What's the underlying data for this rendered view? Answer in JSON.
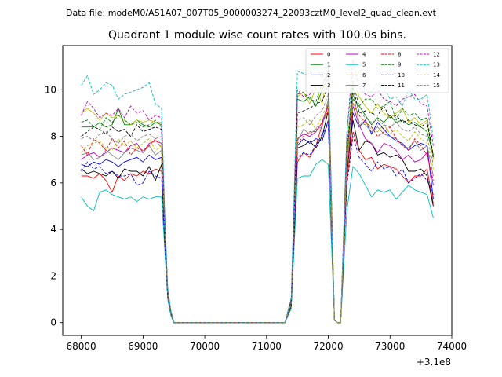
{
  "figure": {
    "suptitle": "Data file: modeM0/AS1A07_007T05_9000003274_22093cztM0_level2_quad_clean.evt"
  },
  "chart_data": {
    "type": "line",
    "title": "Quadrant 1 module wise count rates with 100.0s bins.",
    "xlabel": "",
    "ylabel": "",
    "x_offset_label": "+3.1e8",
    "xlim": [
      67700,
      74000
    ],
    "ylim": [
      -0.55,
      11.9
    ],
    "xticks": [
      68000,
      69000,
      70000,
      71000,
      72000,
      73000,
      74000
    ],
    "yticks": [
      0,
      2,
      4,
      6,
      8,
      10
    ],
    "grid": false,
    "legend": {
      "placement": "top-right",
      "columns": 4
    },
    "x": [
      68000,
      68100,
      68200,
      68300,
      68400,
      68500,
      68600,
      68700,
      68800,
      68900,
      69000,
      69100,
      69200,
      69300,
      69350,
      69400,
      69450,
      69500,
      69600,
      70000,
      70500,
      71000,
      71300,
      71400,
      71500,
      71600,
      71700,
      71800,
      71900,
      72000,
      72100,
      72150,
      72200,
      72300,
      72400,
      72500,
      72600,
      72700,
      72800,
      72900,
      73000,
      73100,
      73200,
      73300,
      73400,
      73500,
      73600,
      73700
    ],
    "series": [
      {
        "name": "0",
        "color": "#ff0000",
        "dash": "solid",
        "values": [
          6.3,
          6.3,
          6.2,
          6.4,
          6.1,
          5.6,
          6.3,
          6.1,
          6.4,
          6.3,
          6.5,
          6.4,
          6.6,
          6.5,
          3.8,
          1.2,
          0.4,
          0,
          0,
          0,
          0,
          0,
          0,
          0.7,
          6.9,
          7.3,
          7.1,
          7.6,
          8.5,
          9.3,
          0.1,
          0,
          0,
          6.1,
          8.2,
          7.4,
          7.0,
          7.1,
          6.6,
          6.8,
          6.7,
          6.6,
          6.3,
          6.0,
          6.3,
          6.3,
          6.6,
          5.1
        ]
      },
      {
        "name": "1",
        "color": "#008000",
        "dash": "solid",
        "values": [
          8.4,
          8.4,
          8.4,
          8.6,
          8.4,
          8.5,
          9.2,
          8.5,
          8.5,
          8.7,
          8.5,
          8.4,
          8.6,
          8.5,
          4.5,
          1.4,
          0.5,
          0,
          0,
          0,
          0,
          0,
          0,
          1.0,
          9.6,
          9.5,
          9.7,
          9.3,
          10.0,
          10.5,
          0.1,
          0,
          0,
          7.0,
          9.6,
          9.3,
          8.9,
          8.5,
          8.8,
          8.6,
          8.9,
          8.6,
          8.7,
          8.5,
          8.6,
          8.4,
          8.2,
          7.2
        ]
      },
      {
        "name": "2",
        "color": "#0000ff",
        "dash": "solid",
        "values": [
          6.8,
          6.7,
          6.9,
          6.8,
          7.0,
          6.9,
          6.7,
          6.9,
          7.0,
          7.1,
          6.9,
          7.2,
          7.0,
          7.1,
          3.8,
          1.2,
          0.4,
          0,
          0,
          0,
          0,
          0,
          0,
          0.8,
          7.6,
          7.9,
          7.7,
          7.9,
          7.8,
          8.7,
          0.1,
          0,
          0,
          6.4,
          9.0,
          8.4,
          8.7,
          8.1,
          8.6,
          8.3,
          8.0,
          7.8,
          7.7,
          7.4,
          7.6,
          7.7,
          7.6,
          5.3
        ]
      },
      {
        "name": "3",
        "color": "#000000",
        "dash": "solid",
        "values": [
          6.6,
          6.4,
          6.5,
          6.4,
          6.3,
          6.5,
          6.2,
          6.6,
          6.5,
          6.5,
          6.3,
          6.7,
          6.1,
          6.8,
          3.7,
          1.1,
          0.4,
          0,
          0,
          0,
          0,
          0,
          0,
          0.7,
          7.5,
          7.6,
          7.8,
          7.5,
          8.0,
          9.1,
          0.1,
          0,
          0,
          6.4,
          8.7,
          7.4,
          7.8,
          7.7,
          7.2,
          7.3,
          7.1,
          7.2,
          7.0,
          6.5,
          6.5,
          6.6,
          6.3,
          5.0
        ]
      },
      {
        "name": "4",
        "color": "#bf00bf",
        "dash": "solid",
        "values": [
          7.0,
          7.2,
          7.3,
          7.1,
          7.3,
          7.5,
          7.4,
          7.3,
          7.6,
          7.7,
          7.3,
          7.7,
          7.8,
          7.7,
          4.2,
          1.3,
          0.4,
          0,
          0,
          0,
          0,
          0,
          0,
          0.8,
          7.9,
          8.1,
          8.0,
          8.2,
          8.6,
          9.4,
          0.1,
          0,
          0,
          6.8,
          9.3,
          8.5,
          7.9,
          7.7,
          7.3,
          7.7,
          7.6,
          7.4,
          7.0,
          7.2,
          6.9,
          7.0,
          7.3,
          5.9
        ]
      },
      {
        "name": "5",
        "color": "#00bfbf",
        "dash": "solid",
        "values": [
          5.4,
          5.0,
          4.8,
          5.6,
          5.7,
          5.5,
          5.4,
          5.3,
          5.4,
          5.2,
          5.4,
          5.3,
          5.4,
          5.4,
          3.2,
          1.0,
          0.3,
          0,
          0,
          0,
          0,
          0,
          0,
          0.6,
          6.2,
          6.3,
          6.3,
          6.8,
          7.0,
          6.8,
          0.1,
          0,
          0,
          4.8,
          6.7,
          6.4,
          5.9,
          5.4,
          5.7,
          5.6,
          5.7,
          5.3,
          5.6,
          5.9,
          5.7,
          5.6,
          5.5,
          4.5
        ]
      },
      {
        "name": "6",
        "color": "#bfbf00",
        "dash": "solid",
        "values": [
          9.0,
          9.2,
          9.0,
          8.7,
          9.0,
          8.8,
          8.9,
          8.7,
          8.5,
          8.7,
          8.6,
          8.7,
          8.6,
          8.6,
          4.6,
          1.4,
          0.5,
          0,
          0,
          0,
          0,
          0,
          0,
          1.0,
          9.7,
          9.9,
          9.4,
          10.1,
          9.4,
          10.9,
          0.1,
          0,
          0,
          7.4,
          10.4,
          9.7,
          9.3,
          9.0,
          9.4,
          9.0,
          8.8,
          9.0,
          9.2,
          8.6,
          8.8,
          8.5,
          8.7,
          7.0
        ]
      },
      {
        "name": "7",
        "color": "#808080",
        "dash": "solid",
        "values": [
          7.2,
          7.3,
          7.0,
          7.1,
          7.4,
          7.2,
          7.0,
          7.3,
          7.5,
          7.4,
          7.3,
          7.6,
          7.2,
          7.4,
          4.0,
          1.2,
          0.4,
          0,
          0,
          0,
          0,
          0,
          0,
          0.8,
          7.8,
          8.3,
          8.1,
          8.3,
          8.4,
          9.6,
          0.1,
          0,
          0,
          6.7,
          9.9,
          8.6,
          8.5,
          8.2,
          8.4,
          8.1,
          8.0,
          7.9,
          7.6,
          7.5,
          7.8,
          7.4,
          7.6,
          6.3
        ]
      },
      {
        "name": "8",
        "color": "#ff0000",
        "dash": "dashed",
        "values": [
          7.6,
          7.2,
          7.9,
          7.7,
          7.4,
          7.9,
          7.5,
          7.8,
          7.2,
          7.5,
          7.4,
          7.6,
          7.9,
          7.5,
          4.1,
          1.2,
          0.4,
          0,
          0,
          0,
          0,
          0,
          0,
          0.8,
          7.7,
          8.0,
          8.2,
          8.2,
          8.6,
          9.1,
          0.1,
          0,
          0,
          6.2,
          9.4,
          8.9,
          8.6,
          8.4,
          8.0,
          8.2,
          8.4,
          7.9,
          7.6,
          7.4,
          7.9,
          7.6,
          7.2,
          6.1
        ]
      },
      {
        "name": "9",
        "color": "#008000",
        "dash": "dashed",
        "values": [
          8.6,
          8.7,
          8.4,
          8.3,
          8.8,
          8.6,
          8.9,
          8.7,
          8.5,
          8.6,
          8.4,
          8.5,
          8.7,
          8.4,
          4.5,
          1.4,
          0.5,
          0,
          0,
          0,
          0,
          0,
          0,
          1.0,
          9.8,
          9.9,
          9.6,
          9.5,
          10.3,
          10.7,
          0.1,
          0,
          0,
          7.5,
          10.3,
          9.3,
          9.6,
          9.6,
          9.2,
          9.3,
          9.5,
          8.7,
          9.2,
          8.9,
          9.0,
          8.7,
          8.8,
          7.2
        ]
      },
      {
        "name": "10",
        "color": "#0000ff",
        "dash": "dashed",
        "values": [
          6.5,
          6.9,
          6.6,
          6.7,
          6.4,
          6.5,
          6.3,
          6.3,
          6.4,
          5.9,
          6.0,
          6.5,
          6.3,
          6.2,
          3.5,
          1.1,
          0.4,
          0,
          0,
          0,
          0,
          0,
          0,
          0.7,
          7.1,
          7.3,
          7.2,
          7.6,
          8.1,
          8.5,
          0.1,
          0,
          0,
          5.9,
          8.0,
          7.1,
          6.8,
          6.5,
          6.9,
          6.6,
          6.7,
          6.3,
          6.6,
          6.0,
          6.2,
          6.4,
          6.1,
          5.5
        ]
      },
      {
        "name": "11",
        "color": "#000000",
        "dash": "dashed",
        "values": [
          8.0,
          8.2,
          8.4,
          8.3,
          8.1,
          8.4,
          8.2,
          8.3,
          8.0,
          8.5,
          8.2,
          8.3,
          8.4,
          8.3,
          4.4,
          1.3,
          0.4,
          0,
          0,
          0,
          0,
          0,
          0,
          0.9,
          9.0,
          9.1,
          9.2,
          9.4,
          9.5,
          10.2,
          0.1,
          0,
          0,
          7.1,
          10.1,
          9.0,
          9.1,
          9.0,
          8.9,
          9.3,
          8.8,
          8.9,
          8.6,
          8.7,
          8.5,
          8.4,
          8.6,
          7.1
        ]
      },
      {
        "name": "12",
        "color": "#bf00bf",
        "dash": "dashed",
        "values": [
          8.9,
          9.5,
          9.2,
          8.8,
          9.0,
          8.9,
          9.2,
          8.8,
          9.3,
          9.0,
          9.1,
          8.7,
          8.9,
          8.8,
          4.7,
          1.4,
          0.5,
          0,
          0,
          0,
          0,
          0,
          0,
          1.0,
          10.0,
          9.7,
          9.8,
          10.2,
          10.1,
          10.8,
          0.1,
          0,
          0,
          8.1,
          11.3,
          10.1,
          9.8,
          9.7,
          10.0,
          9.6,
          9.5,
          9.3,
          9.6,
          9.7,
          9.8,
          9.4,
          9.3,
          7.6
        ]
      },
      {
        "name": "13",
        "color": "#00bfbf",
        "dash": "dashed",
        "values": [
          10.2,
          10.6,
          9.8,
          10.0,
          10.3,
          10.2,
          9.6,
          9.8,
          9.9,
          10.0,
          10.1,
          10.3,
          9.4,
          9.2,
          4.9,
          1.5,
          0.5,
          0,
          0,
          0,
          0,
          0,
          0,
          1.1,
          10.8,
          10.7,
          10.6,
          11.0,
          10.5,
          11.2,
          0.1,
          0,
          0,
          8.2,
          10.6,
          10.3,
          10.0,
          9.9,
          10.3,
          10.1,
          9.6,
          9.7,
          9.3,
          10.0,
          9.6,
          9.6,
          9.8,
          7.9
        ]
      },
      {
        "name": "14",
        "color": "#bfbf00",
        "dash": "dashed",
        "values": [
          7.3,
          7.6,
          7.7,
          7.8,
          7.5,
          7.4,
          7.9,
          7.6,
          7.8,
          7.5,
          7.7,
          7.9,
          7.4,
          7.6,
          4.1,
          1.2,
          0.4,
          0,
          0,
          0,
          0,
          0,
          0,
          0.8,
          8.4,
          8.5,
          8.7,
          8.3,
          8.9,
          9.4,
          0.1,
          0,
          0,
          6.9,
          9.5,
          8.5,
          8.6,
          8.3,
          8.2,
          8.5,
          8.1,
          8.3,
          8.0,
          7.8,
          8.2,
          7.9,
          7.7,
          6.6
        ]
      },
      {
        "name": "15",
        "color": "#808080",
        "dash": "dashed",
        "values": [
          7.9,
          8.0,
          7.8,
          8.1,
          8.2,
          7.9,
          7.7,
          8.0,
          8.1,
          7.8,
          8.0,
          8.1,
          7.9,
          8.0,
          4.3,
          1.3,
          0.4,
          0,
          0,
          0,
          0,
          0,
          0,
          0.9,
          8.7,
          8.8,
          8.5,
          8.9,
          9.1,
          9.8,
          0.1,
          0,
          0,
          7.2,
          9.8,
          9.1,
          8.8,
          8.6,
          8.7,
          8.5,
          8.4,
          8.6,
          8.3,
          8.2,
          8.4,
          8.1,
          8.0,
          6.8
        ]
      }
    ]
  }
}
